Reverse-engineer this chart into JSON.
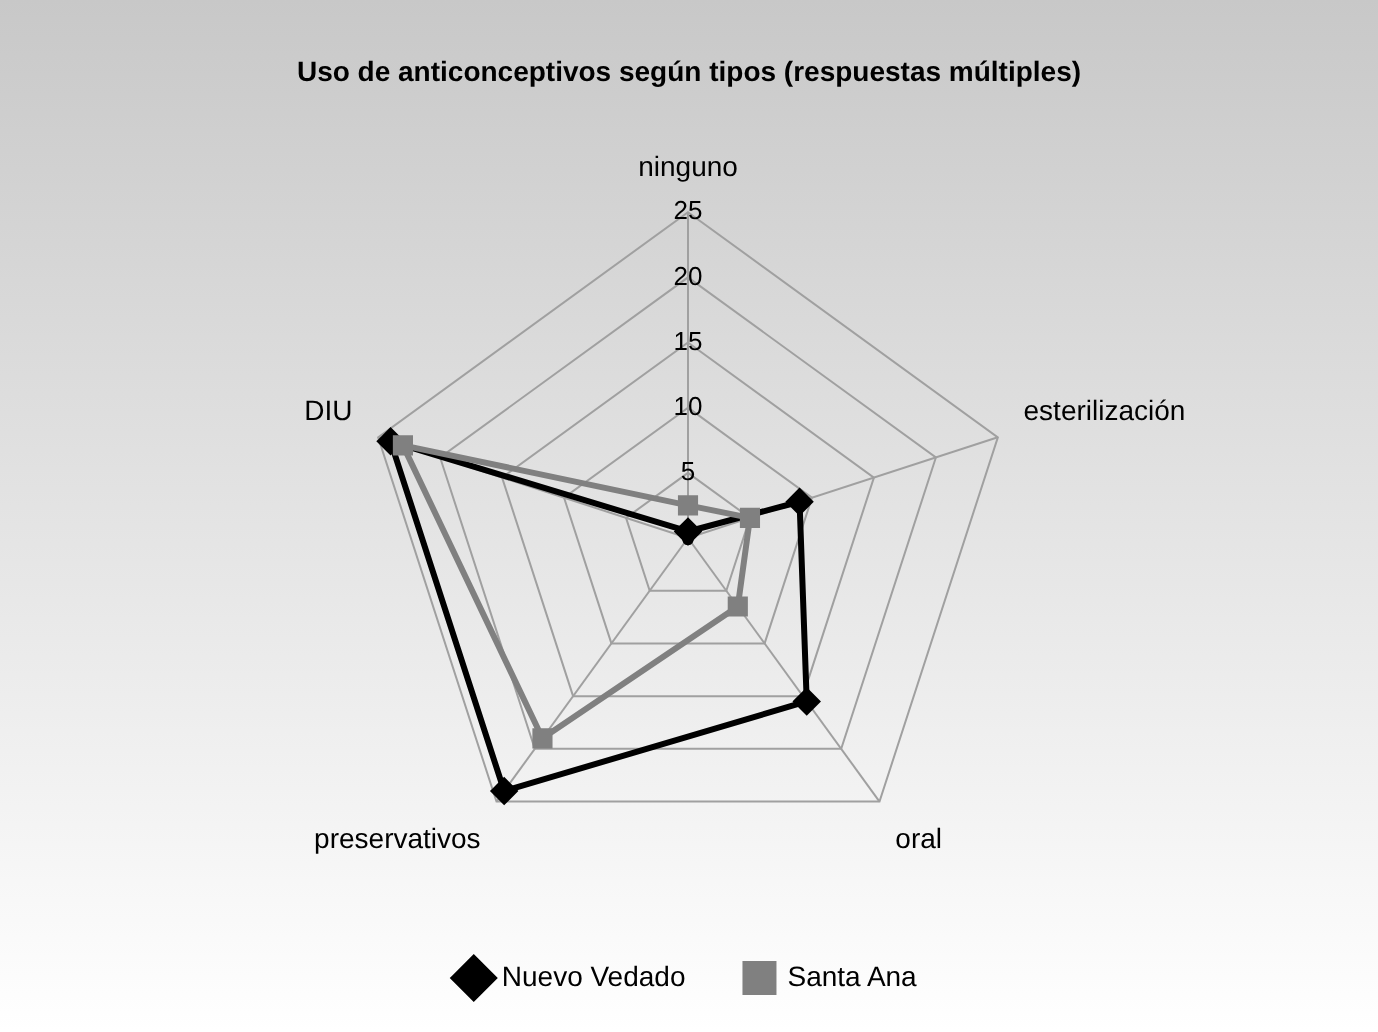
{
  "chart_data": {
    "type": "radar",
    "title": "Uso de anticonceptivos según tipos (respuestas múltiples)",
    "categories": [
      "ninguno",
      "esterilización",
      "oral",
      "preservativos",
      "DIU"
    ],
    "ylim": [
      0,
      25
    ],
    "yticks": [
      0,
      5,
      10,
      15,
      20,
      25
    ],
    "grid": true,
    "legend": "bottom",
    "series": [
      {
        "name": "Nuevo Vedado",
        "color": "#000000",
        "marker": "diamond",
        "values": [
          0.5,
          9,
          15.5,
          24,
          24
        ]
      },
      {
        "name": "Santa Ana",
        "color": "#808080",
        "marker": "square",
        "values": [
          2.5,
          5,
          6.5,
          19,
          23
        ]
      }
    ]
  }
}
